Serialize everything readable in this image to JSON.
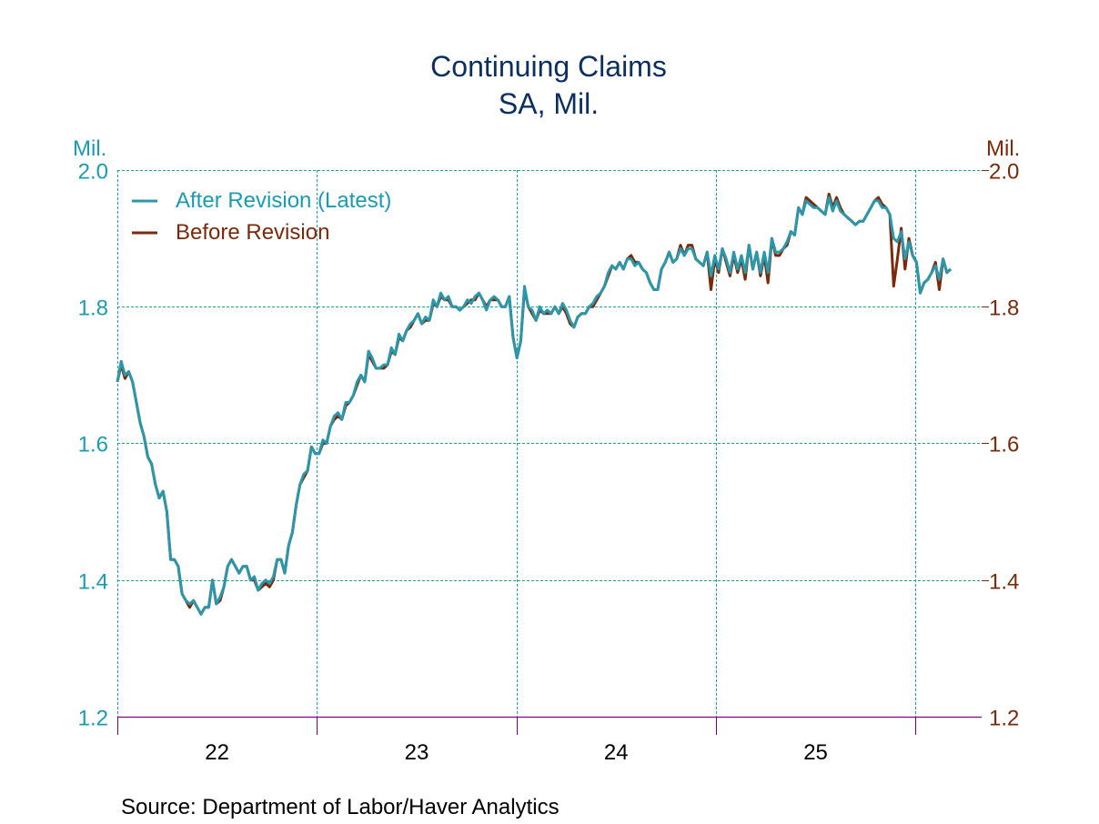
{
  "chart_data": {
    "type": "line",
    "title": "Continuing Claims",
    "subtitle": "SA, Mil.",
    "ylabel_left": "Mil.",
    "ylabel_right": "Mil.",
    "ylim": [
      1.2,
      2.0
    ],
    "yticks": [
      "2.0",
      "1.8",
      "1.6",
      "1.4",
      "1.2"
    ],
    "ytick_values": [
      2.0,
      1.8,
      1.6,
      1.4,
      1.2
    ],
    "xlim": [
      2022.0,
      2026.35
    ],
    "xticks": [
      "22",
      "23",
      "24",
      "25"
    ],
    "xtick_centers": [
      2022.5,
      2023.5,
      2024.5,
      2025.5
    ],
    "year_boundaries": [
      2022,
      2023,
      2024,
      2025,
      2026
    ],
    "grid": true,
    "legend_position": "top-left",
    "source": "Source:  Department of Labor/Haver Analytics",
    "colors": {
      "after": "#2a97aa",
      "before": "#7a2a0a",
      "grid": "#1aa39a",
      "axis": "#800080",
      "title": "#0b2f5e"
    },
    "series": [
      {
        "name": "After Revision (Latest)",
        "values": [
          1.69,
          1.72,
          1.7,
          1.705,
          1.69,
          1.66,
          1.63,
          1.61,
          1.58,
          1.57,
          1.54,
          1.52,
          1.53,
          1.5,
          1.43,
          1.43,
          1.42,
          1.38,
          1.37,
          1.365,
          1.37,
          1.36,
          1.35,
          1.36,
          1.36,
          1.4,
          1.365,
          1.375,
          1.39,
          1.42,
          1.43,
          1.42,
          1.41,
          1.42,
          1.42,
          1.4,
          1.405,
          1.385,
          1.395,
          1.4,
          1.395,
          1.405,
          1.43,
          1.43,
          1.41,
          1.45,
          1.47,
          1.51,
          1.54,
          1.555,
          1.56,
          1.595,
          1.585,
          1.585,
          1.605,
          1.6,
          1.625,
          1.64,
          1.645,
          1.635,
          1.66,
          1.66,
          1.67,
          1.69,
          1.7,
          1.69,
          1.735,
          1.725,
          1.71,
          1.71,
          1.715,
          1.715,
          1.74,
          1.73,
          1.76,
          1.75,
          1.765,
          1.775,
          1.78,
          1.79,
          1.775,
          1.785,
          1.78,
          1.81,
          1.8,
          1.82,
          1.81,
          1.815,
          1.8,
          1.8,
          1.795,
          1.8,
          1.81,
          1.805,
          1.815,
          1.82,
          1.81,
          1.795,
          1.81,
          1.815,
          1.81,
          1.8,
          1.8,
          1.815,
          1.755,
          1.725,
          1.75,
          1.83,
          1.8,
          1.795,
          1.78,
          1.8,
          1.79,
          1.795,
          1.79,
          1.8,
          1.79,
          1.805,
          1.795,
          1.78,
          1.77,
          1.785,
          1.79,
          1.79,
          1.8,
          1.805,
          1.815,
          1.82,
          1.83,
          1.85,
          1.86,
          1.855,
          1.865,
          1.855,
          1.87,
          1.87,
          1.86,
          1.865,
          1.855,
          1.85,
          1.835,
          1.825,
          1.825,
          1.855,
          1.865,
          1.88,
          1.865,
          1.87,
          1.885,
          1.875,
          1.885,
          1.885,
          1.87,
          1.865,
          1.86,
          1.88,
          1.845,
          1.875,
          1.855,
          1.885,
          1.87,
          1.85,
          1.88,
          1.855,
          1.875,
          1.85,
          1.89,
          1.855,
          1.88,
          1.85,
          1.88,
          1.85,
          1.9,
          1.88,
          1.88,
          1.885,
          1.895,
          1.91,
          1.905,
          1.945,
          1.935,
          1.955,
          1.95,
          1.945,
          1.945,
          1.94,
          1.935,
          1.96,
          1.94,
          1.955,
          1.94,
          1.935,
          1.93,
          1.925,
          1.92,
          1.925,
          1.925,
          1.935,
          1.945,
          1.955,
          1.955,
          1.945,
          1.945,
          1.935,
          1.9,
          1.895,
          1.91,
          1.87,
          1.895,
          1.875,
          1.865,
          1.82,
          1.835,
          1.84,
          1.85,
          1.86,
          1.84,
          1.87,
          1.85,
          1.855
        ]
      },
      {
        "name": "Before Revision",
        "values": [
          1.69,
          1.715,
          1.695,
          1.705,
          1.69,
          1.66,
          1.63,
          1.61,
          1.58,
          1.57,
          1.54,
          1.52,
          1.53,
          1.5,
          1.43,
          1.43,
          1.42,
          1.38,
          1.37,
          1.36,
          1.37,
          1.36,
          1.35,
          1.36,
          1.36,
          1.4,
          1.365,
          1.37,
          1.39,
          1.42,
          1.43,
          1.42,
          1.41,
          1.42,
          1.42,
          1.4,
          1.4,
          1.385,
          1.39,
          1.395,
          1.39,
          1.4,
          1.43,
          1.43,
          1.41,
          1.45,
          1.47,
          1.51,
          1.54,
          1.55,
          1.56,
          1.595,
          1.585,
          1.585,
          1.6,
          1.6,
          1.625,
          1.635,
          1.64,
          1.635,
          1.655,
          1.66,
          1.67,
          1.685,
          1.7,
          1.69,
          1.73,
          1.72,
          1.71,
          1.71,
          1.71,
          1.715,
          1.735,
          1.73,
          1.755,
          1.75,
          1.765,
          1.77,
          1.78,
          1.79,
          1.775,
          1.78,
          1.78,
          1.805,
          1.8,
          1.815,
          1.81,
          1.81,
          1.8,
          1.8,
          1.795,
          1.8,
          1.805,
          1.81,
          1.81,
          1.82,
          1.81,
          1.8,
          1.81,
          1.81,
          1.81,
          1.8,
          1.8,
          1.815,
          1.755,
          1.725,
          1.75,
          1.825,
          1.8,
          1.79,
          1.78,
          1.795,
          1.79,
          1.79,
          1.79,
          1.8,
          1.79,
          1.8,
          1.79,
          1.775,
          1.77,
          1.785,
          1.79,
          1.79,
          1.8,
          1.8,
          1.81,
          1.82,
          1.83,
          1.845,
          1.86,
          1.855,
          1.865,
          1.855,
          1.87,
          1.875,
          1.865,
          1.865,
          1.855,
          1.85,
          1.835,
          1.825,
          1.825,
          1.855,
          1.865,
          1.88,
          1.865,
          1.87,
          1.89,
          1.875,
          1.89,
          1.89,
          1.87,
          1.865,
          1.86,
          1.88,
          1.825,
          1.87,
          1.85,
          1.885,
          1.865,
          1.845,
          1.875,
          1.85,
          1.87,
          1.84,
          1.89,
          1.855,
          1.88,
          1.845,
          1.875,
          1.835,
          1.9,
          1.875,
          1.875,
          1.885,
          1.89,
          1.91,
          1.905,
          1.945,
          1.935,
          1.96,
          1.955,
          1.95,
          1.945,
          1.94,
          1.935,
          1.965,
          1.945,
          1.96,
          1.945,
          1.935,
          1.93,
          1.925,
          1.92,
          1.925,
          1.925,
          1.935,
          1.945,
          1.955,
          1.96,
          1.95,
          1.945,
          1.935,
          1.83,
          1.87,
          1.915,
          1.855,
          1.9,
          1.875,
          1.865,
          1.82,
          1.835,
          1.84,
          1.85,
          1.865,
          1.825,
          1.87,
          1.85,
          1.855
        ]
      }
    ]
  }
}
